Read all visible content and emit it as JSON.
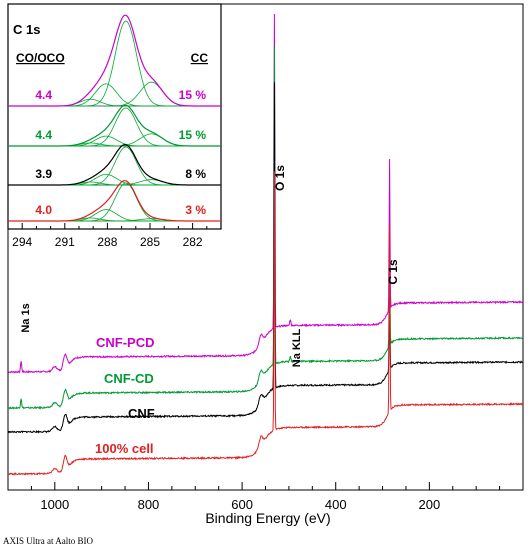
{
  "footnote": "AXIS Ultra at Aalto BIO",
  "colors": {
    "pcd": "#cc00cc",
    "cd": "#009933",
    "cnf": "#000000",
    "cell": "#e02020"
  },
  "chart_data": {
    "type": "line",
    "xlabel": "Binding Energy (eV)",
    "xlim": [
      1100,
      0
    ],
    "xticks": [
      1000,
      800,
      600,
      400,
      200
    ],
    "grid": false,
    "legend": "inline labels next to each trace",
    "series": [
      {
        "name": "CNF-PCD",
        "color": "#cc00cc",
        "baseline": 0.85
      },
      {
        "name": "CNF-CD",
        "color": "#009933",
        "baseline": 0.55
      },
      {
        "name": "CNF",
        "color": "#000000",
        "baseline": 0.35
      },
      {
        "name": "100% cell",
        "color": "#e02020",
        "baseline": 0.0
      }
    ],
    "annotations": [
      {
        "text": "O 1s",
        "x": 531
      },
      {
        "text": "C 1s",
        "x": 285
      },
      {
        "text": "Na KLL",
        "x": 497
      },
      {
        "text": "Na 1s",
        "x": 1072
      }
    ],
    "inset": {
      "title": "C 1s",
      "xlim": [
        295,
        280
      ],
      "xticks": [
        294,
        291,
        288,
        285,
        282
      ],
      "headers": {
        "left": "CO/OCO",
        "right": "CC"
      },
      "rows": [
        {
          "sample": "CNF-PCD",
          "co_oco": "4.4",
          "cc": "15 %",
          "color": "#cc00cc"
        },
        {
          "sample": "CNF-CD",
          "co_oco": "4.4",
          "cc": "15 %",
          "color": "#009933"
        },
        {
          "sample": "CNF",
          "co_oco": "3.9",
          "cc": "8 %",
          "color": "#000000"
        },
        {
          "sample": "100% cell",
          "co_oco": "4.0",
          "cc": "3 %",
          "color": "#e02020"
        }
      ]
    }
  }
}
